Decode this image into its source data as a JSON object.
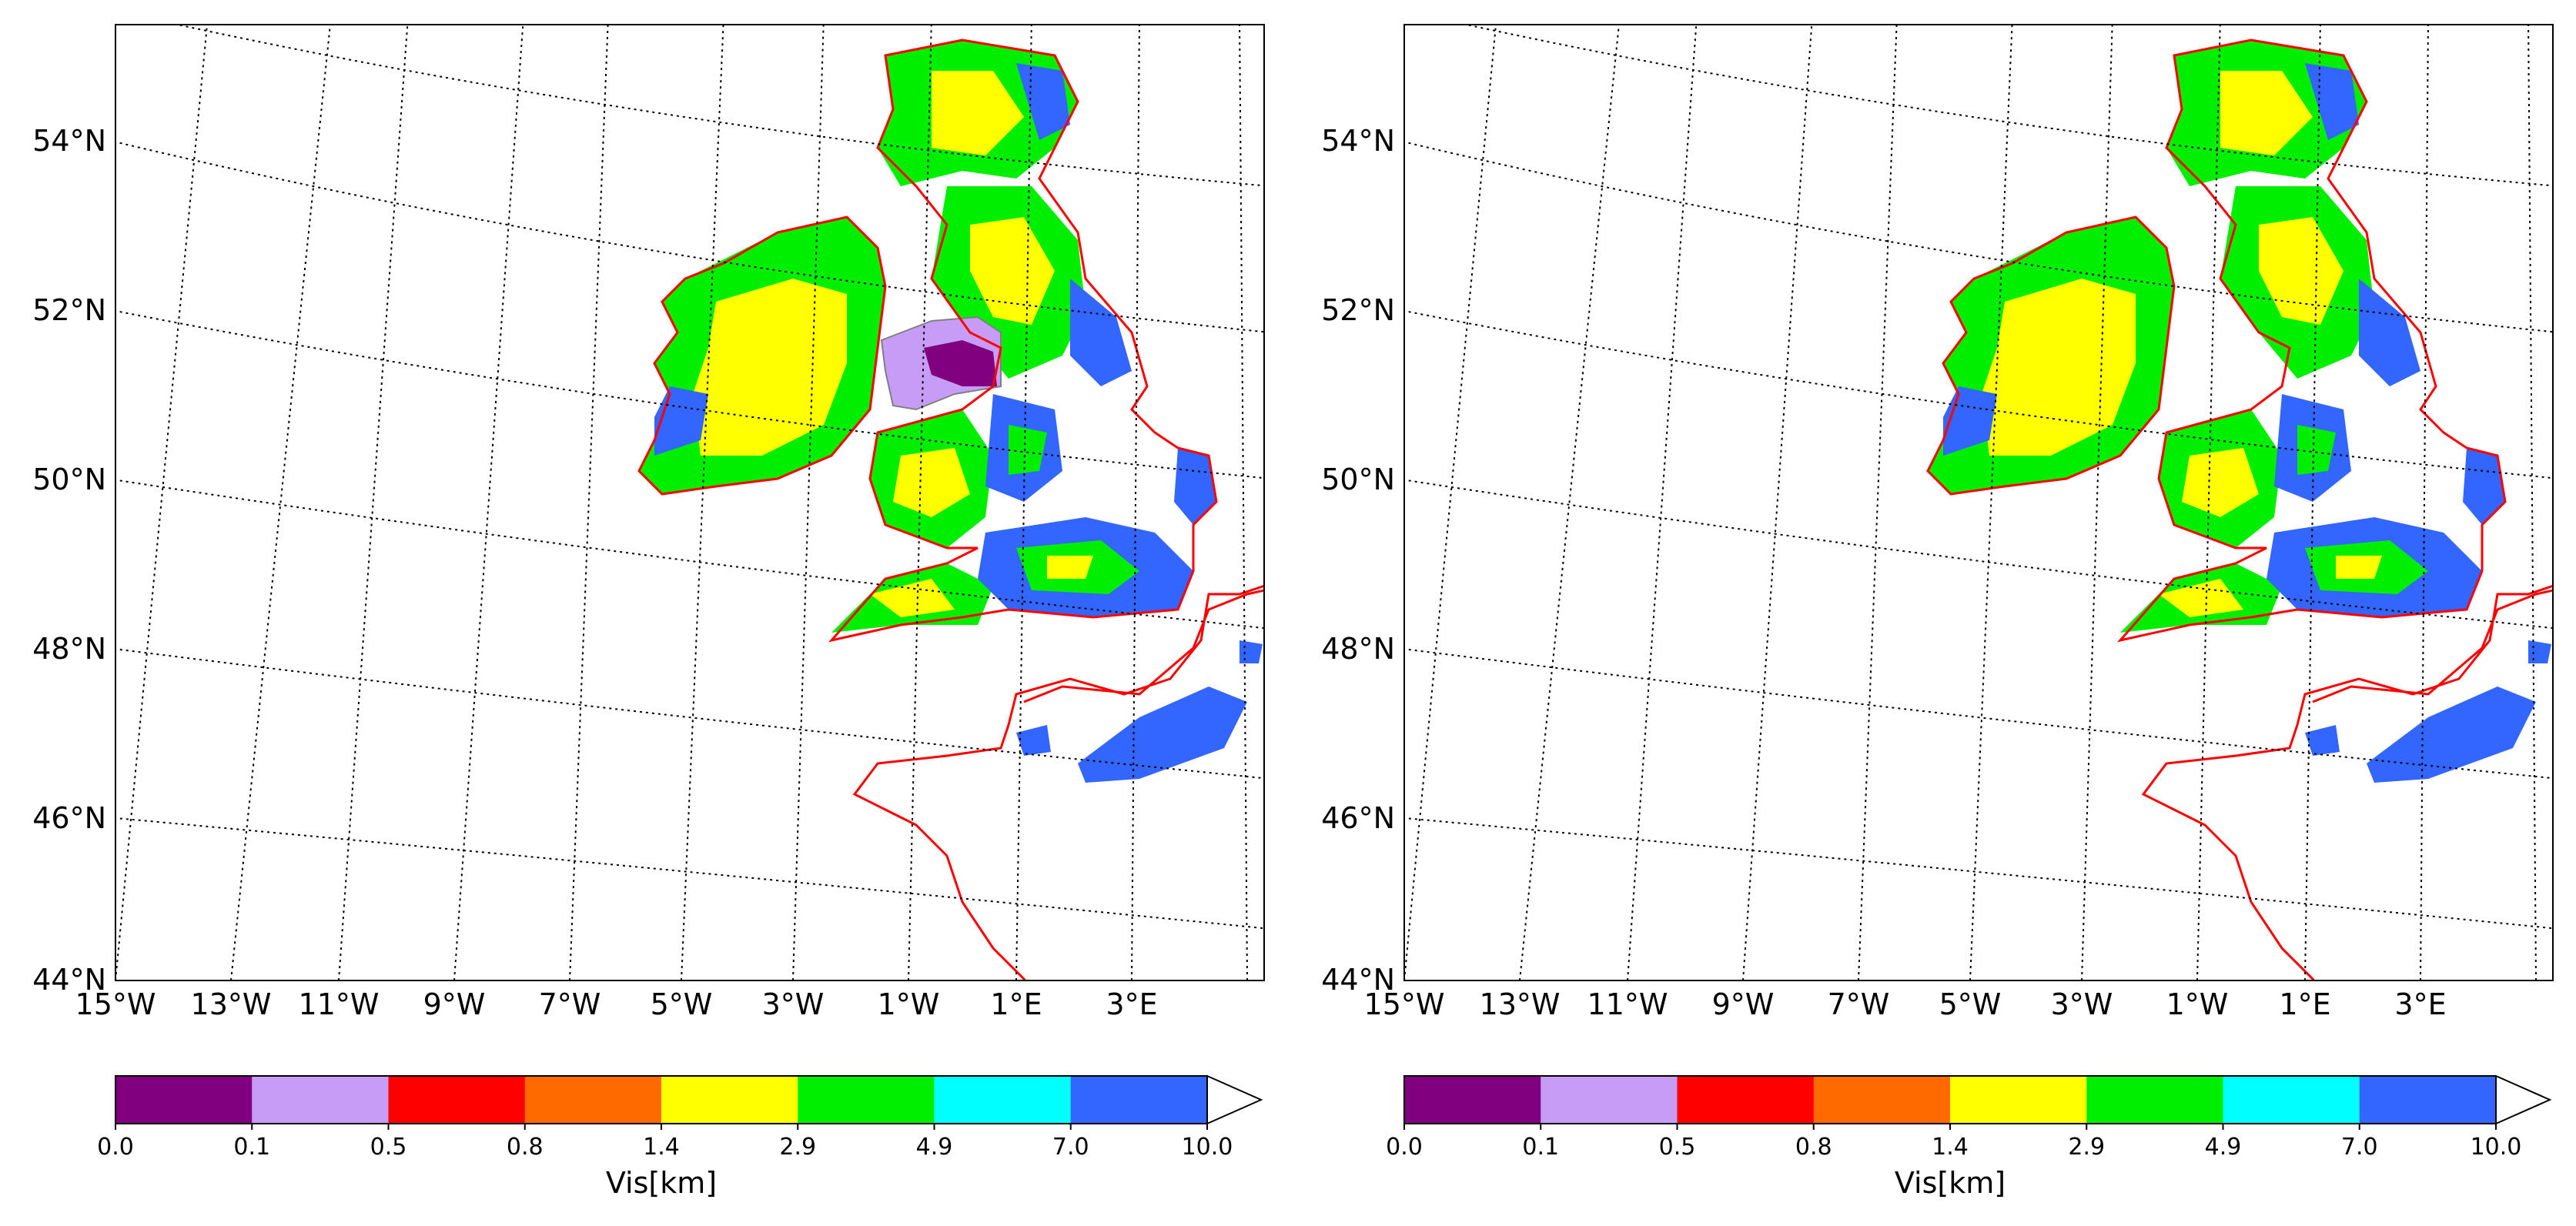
{
  "maps": [
    {
      "id": "left",
      "lat_labels": [
        "54°N",
        "52°N",
        "50°N",
        "48°N",
        "46°N",
        "44°N"
      ],
      "lon_labels": [
        "15°W",
        "13°W",
        "11°W",
        "9°W",
        "7°W",
        "5°W",
        "3°W",
        "1°W",
        "1°E",
        "3°E"
      ],
      "has_low_vis_patch": true
    },
    {
      "id": "right",
      "lat_labels": [
        "54°N",
        "52°N",
        "50°N",
        "48°N",
        "46°N",
        "44°N"
      ],
      "lon_labels": [
        "15°W",
        "13°W",
        "11°W",
        "9°W",
        "7°W",
        "5°W",
        "3°W",
        "1°W",
        "1°E",
        "3°E"
      ],
      "has_low_vis_patch": false
    }
  ],
  "colorbar": {
    "label": "Vis[km]",
    "ticks": [
      "0.0",
      "0.1",
      "0.5",
      "0.8",
      "1.4",
      "2.9",
      "4.9",
      "7.0",
      "10.0"
    ],
    "colors": [
      "#800080",
      "#c79cf6",
      "#ff0000",
      "#ff6a00",
      "#ffff00",
      "#00ee00",
      "#00ffff",
      "#3366ff"
    ],
    "extend": "max"
  },
  "styles": {
    "coastline_color": "#ff0000",
    "gridline_color": "#000000"
  }
}
